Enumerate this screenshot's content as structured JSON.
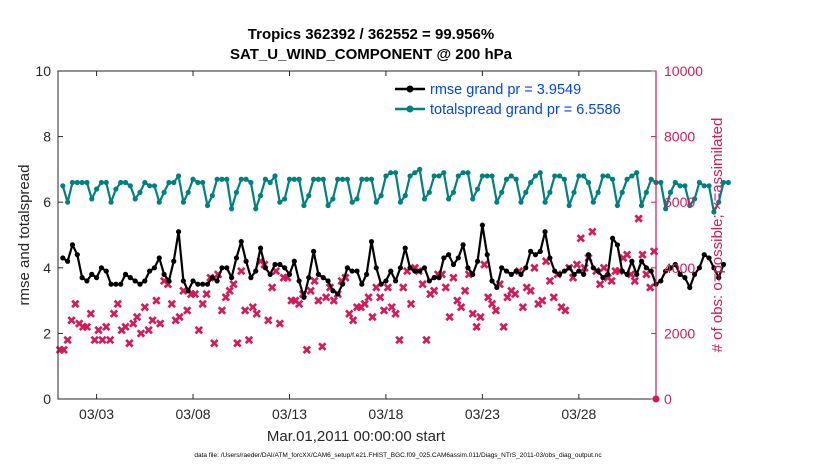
{
  "chart_data": {
    "type": "line",
    "title_line1": "Tropics 362392 / 362552 = 99.956%",
    "title_line2": "SAT_U_WIND_COMPONENT @ 200 hPa",
    "xlabel": "Mar.01,2011 00:00:00 start",
    "ylabel_left": "rmse and totalspread",
    "ylabel_right": "# of obs: o=possible; ×=assimilated",
    "footer": "data file: /Users/raeder/DAI/ATM_forcXX/CAM6_setup/f.e21.FHIST_BGC.f09_025.CAM6assim.011/Diags_NTrS_2011-03/obs_diag_output.nc",
    "xlim": [
      1,
      32
    ],
    "x_ticks": [
      3,
      8,
      13,
      18,
      23,
      28
    ],
    "x_tick_labels": [
      "03/03",
      "03/08",
      "03/13",
      "03/18",
      "03/23",
      "03/28"
    ],
    "ylim_left": [
      0,
      10
    ],
    "y_ticks_left": [
      "0",
      "2",
      "4",
      "6",
      "8",
      "10"
    ],
    "ylim_right": [
      0,
      10000
    ],
    "y_ticks_right": [
      "0",
      "2000",
      "4000",
      "6000",
      "8000",
      "10000"
    ],
    "colors": {
      "rmse": "#000000",
      "spread": "#00807f",
      "obs": "#d6195c",
      "legend_text": "#0044ee"
    },
    "legend": [
      {
        "name": "rmse grand pr = 3.9549"
      },
      {
        "name": "totalspread grand pr = 6.5586"
      }
    ],
    "x_start": 1.25,
    "x_step": 0.25,
    "rmse": [
      4.3,
      4.2,
      4.7,
      4.4,
      3.7,
      3.6,
      3.8,
      3.7,
      4.0,
      3.9,
      3.5,
      3.5,
      3.5,
      3.8,
      3.7,
      3.6,
      3.5,
      3.6,
      3.9,
      4.0,
      4.3,
      3.8,
      3.6,
      4.2,
      5.1,
      3.6,
      3.3,
      3.6,
      3.5,
      3.5,
      3.5,
      3.7,
      3.6,
      4.0,
      4.0,
      3.7,
      4.3,
      4.8,
      4.2,
      3.7,
      3.9,
      4.6,
      4.0,
      3.8,
      4.1,
      4.1,
      4.0,
      3.8,
      4.2,
      3.6,
      3.1,
      3.7,
      4.5,
      3.8,
      3.7,
      3.6,
      3.3,
      3.2,
      3.5,
      4.0,
      3.9,
      3.9,
      3.5,
      3.8,
      4.8,
      4.0,
      3.5,
      3.6,
      3.9,
      3.6,
      4.0,
      4.6,
      4.0,
      3.9,
      3.9,
      4.0,
      3.6,
      3.7,
      3.7,
      4.3,
      4.4,
      4.1,
      4.3,
      4.7,
      4.0,
      3.8,
      4.2,
      5.3,
      4.4,
      3.6,
      3.4,
      4.0,
      3.9,
      3.8,
      3.9,
      3.8,
      4.0,
      4.5,
      4.4,
      4.5,
      5.1,
      4.3,
      3.9,
      3.8,
      3.9,
      4.0,
      3.8,
      3.9,
      3.8,
      4.4,
      4.0,
      3.9,
      3.7,
      3.8,
      4.9,
      4.7,
      3.9,
      3.8,
      4.2,
      3.8,
      4.2,
      4.0,
      3.9,
      3.5,
      3.6,
      3.9,
      4.0,
      4.1,
      3.8,
      3.7,
      3.4,
      3.8,
      4.0,
      4.4,
      4.3,
      4.0,
      3.7,
      4.1
    ],
    "totalspread": [
      6.5,
      6.0,
      6.6,
      6.6,
      6.6,
      6.6,
      6.1,
      6.4,
      6.6,
      6.6,
      6.0,
      6.4,
      6.6,
      6.6,
      6.5,
      6.1,
      6.3,
      6.6,
      6.5,
      6.5,
      6.0,
      6.3,
      6.6,
      6.6,
      6.8,
      6.0,
      6.3,
      6.7,
      6.6,
      6.6,
      5.9,
      6.2,
      6.7,
      6.7,
      6.7,
      5.8,
      6.3,
      6.7,
      6.7,
      6.6,
      5.8,
      6.2,
      6.7,
      6.6,
      6.8,
      6.0,
      6.1,
      6.7,
      6.7,
      6.7,
      5.9,
      6.2,
      6.7,
      6.7,
      6.7,
      5.9,
      6.1,
      6.7,
      6.7,
      6.7,
      6.0,
      6.1,
      6.7,
      6.7,
      6.7,
      6.0,
      6.2,
      6.8,
      6.9,
      6.9,
      6.0,
      6.2,
      6.8,
      6.9,
      7.0,
      6.1,
      6.3,
      6.8,
      6.8,
      6.9,
      6.1,
      6.3,
      6.8,
      6.9,
      6.9,
      6.1,
      6.4,
      6.8,
      6.8,
      6.8,
      6.0,
      6.3,
      6.7,
      6.8,
      6.7,
      6.0,
      6.3,
      6.6,
      6.8,
      6.9,
      6.0,
      6.3,
      6.8,
      6.8,
      6.7,
      5.9,
      6.3,
      6.8,
      6.8,
      6.6,
      6.0,
      6.3,
      6.8,
      6.8,
      6.7,
      5.9,
      6.3,
      6.7,
      6.8,
      6.9,
      5.9,
      6.3,
      6.7,
      6.6,
      6.6,
      5.8,
      6.3,
      6.6,
      6.5,
      6.5,
      5.9,
      6.1,
      6.6,
      6.5,
      6.5,
      5.7,
      6.0,
      6.6,
      6.6
    ],
    "obs_assimilated": [
      1500,
      1500,
      1800,
      2400,
      2900,
      2300,
      2200,
      2200,
      2600,
      1800,
      2100,
      1800,
      2200,
      1800,
      2600,
      2900,
      2100,
      2200,
      1700,
      2300,
      2500,
      2000,
      2800,
      2100,
      2400,
      3000,
      2300,
      3600,
      3500,
      2900,
      2400,
      2500,
      3300,
      2700,
      3200,
      3200,
      2100,
      2900,
      3200,
      3700,
      1700,
      3800,
      2700,
      3100,
      3300,
      3500,
      1700,
      3900,
      2700,
      1800,
      2800,
      2600,
      4200,
      4100,
      2400,
      3400,
      3900,
      2300,
      3700,
      3700,
      3000,
      3000,
      2900,
      3200,
      1500,
      3300,
      3600,
      3000,
      1600,
      3100,
      3400,
      3000,
      3200,
      3600,
      3700,
      2600,
      2400,
      2800,
      2800,
      2900,
      3100,
      2500,
      3400,
      3100,
      2700,
      3400,
      2800,
      2600,
      1800,
      3400,
      3900,
      2900,
      4000,
      3900,
      3500,
      1800,
      3200,
      3300,
      3800,
      3800,
      3400,
      2500,
      3700,
      3000,
      2800,
      3300,
      3800,
      2600,
      2200,
      2500,
      4100,
      3100,
      2900,
      2700,
      3500,
      2200,
      3100,
      3300,
      3200,
      3900,
      2800,
      3400,
      3300,
      4000,
      2900,
      3000,
      4200,
      3600,
      3100,
      3800,
      2800,
      2700,
      4000,
      3700,
      4100,
      4900,
      4000,
      4300,
      5100,
      3900,
      3500,
      4000,
      3700,
      3600,
      3900,
      3900,
      4300,
      4400,
      3800,
      3600,
      5500,
      4400,
      3800,
      3400,
      4500
    ],
    "obs_assimilated_x_start": 1.1,
    "obs_assimilated_x_step": 0.2,
    "obs_possible_last": {
      "x": 32,
      "value": 0
    }
  }
}
